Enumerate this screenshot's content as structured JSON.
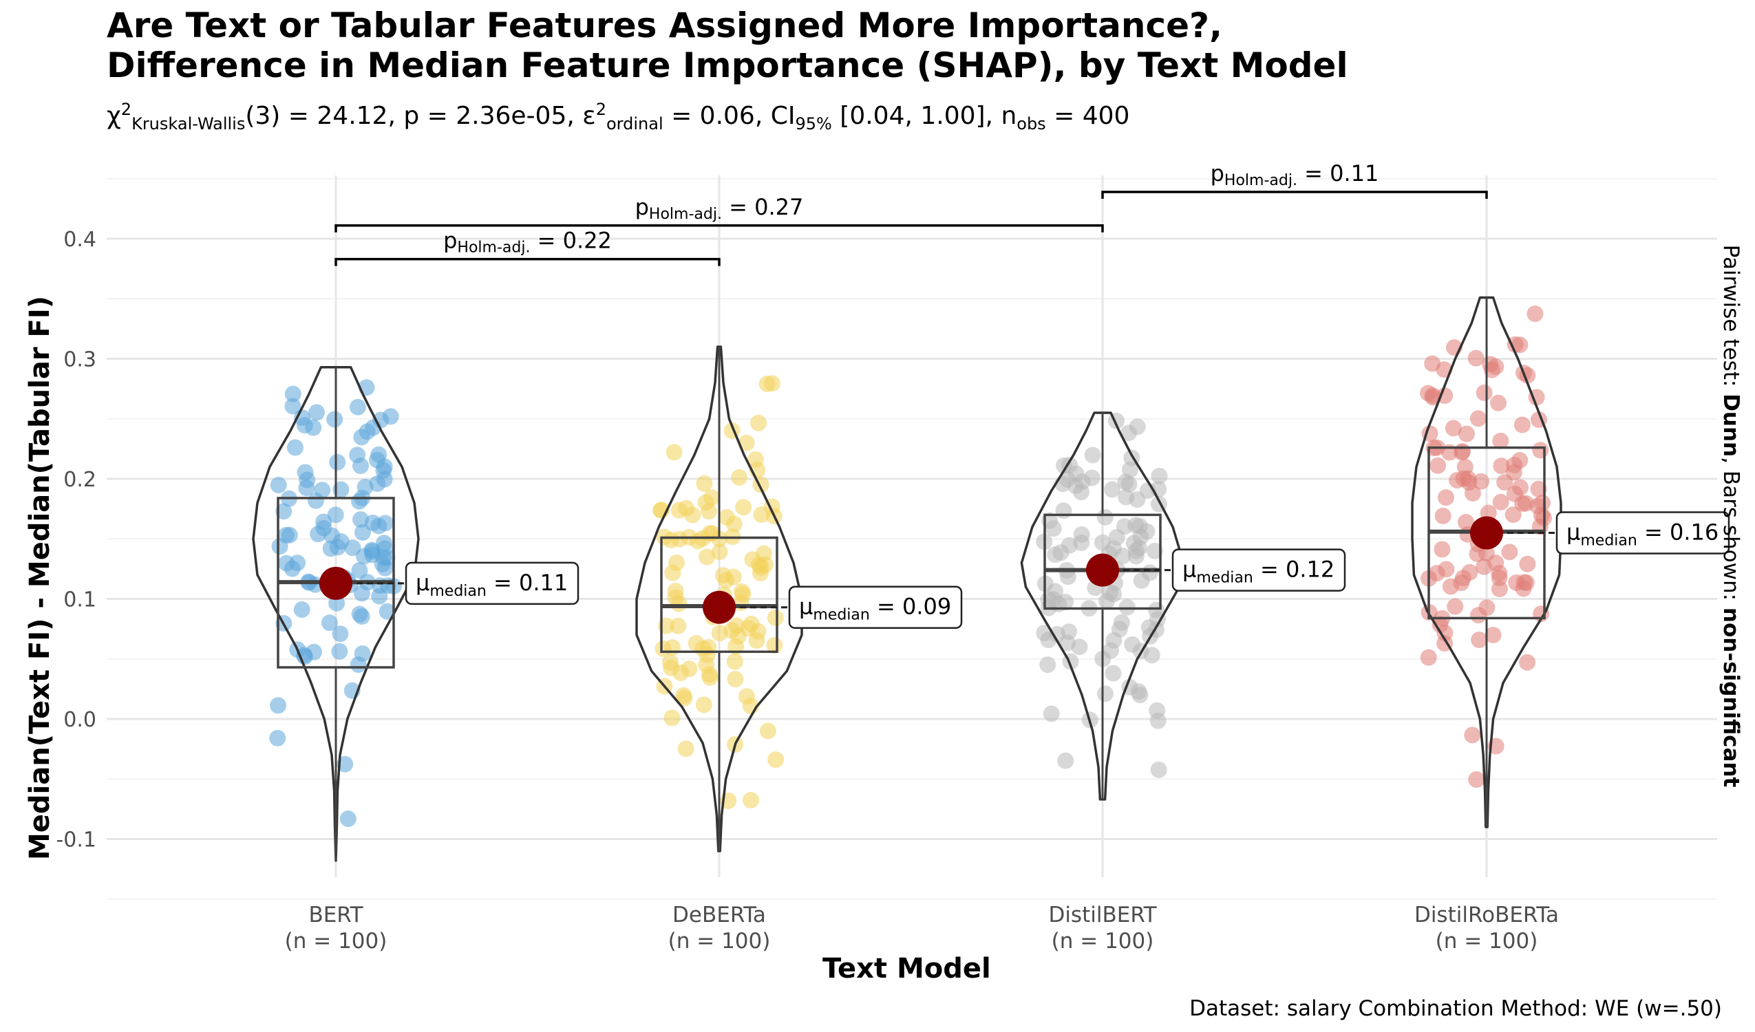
{
  "title_line1": "Are Text or Tabular Features Assigned More Importance?,",
  "title_line2": "Difference in Median Feature Importance (SHAP), by Text Model",
  "subtitle": {
    "chi_symbol": "χ",
    "chi_sup": "2",
    "chi_sub": "Kruskal-Wallis",
    "stat_text": "(3) = 24.12, p = 2.36e-05, ",
    "eps_symbol": "ε",
    "eps_sup": "2",
    "eps_sub": "ordinal",
    "eps_text": " = 0.06, CI",
    "ci_sub": "95%",
    "ci_text": " [0.04, 1.00], n",
    "n_sub": "obs",
    "n_text": " = 400"
  },
  "xlabel": "Text Model",
  "ylabel": "Median(Text FI) - Median(Tabular FI)",
  "right_label": {
    "pre": "Pairwise test: ",
    "test": "Dunn",
    "mid": ", Bars shown: ",
    "bars": "non-significant"
  },
  "caption": "Dataset:  salary Combination Method:  WE (w=.50)",
  "chart_data": {
    "type": "violin",
    "ylim": [
      -0.12,
      0.45
    ],
    "yticks": [
      "0.4",
      "0.3",
      "0.2",
      "0.1",
      "0.0",
      "-0.1"
    ],
    "ytick_values": [
      0.4,
      0.3,
      0.2,
      0.1,
      0.0,
      -0.1
    ],
    "grid": true,
    "groups": [
      {
        "name": "BERT",
        "n_label": "(n = 100)",
        "color": "#5DA5DA",
        "q1": 0.043,
        "median": 0.114,
        "q3": 0.184,
        "min": -0.118,
        "max": 0.293,
        "mean_point": 0.113,
        "median_label_pre": "μ",
        "median_label_sub": "median",
        "median_label_val": " = 0.11",
        "violin_width": [
          [
            -0.118,
            0.0
          ],
          [
            -0.09,
            0.012
          ],
          [
            -0.06,
            0.02
          ],
          [
            -0.03,
            0.05
          ],
          [
            0.0,
            0.14
          ],
          [
            0.03,
            0.3
          ],
          [
            0.06,
            0.48
          ],
          [
            0.09,
            0.72
          ],
          [
            0.12,
            0.95
          ],
          [
            0.15,
            1.0
          ],
          [
            0.18,
            0.95
          ],
          [
            0.21,
            0.8
          ],
          [
            0.24,
            0.55
          ],
          [
            0.27,
            0.33
          ],
          [
            0.293,
            0.18
          ]
        ]
      },
      {
        "name": "DeBERTa",
        "n_label": "(n = 100)",
        "color": "#F3D259",
        "q1": 0.056,
        "median": 0.094,
        "q3": 0.151,
        "min": -0.11,
        "max": 0.31,
        "mean_point": 0.093,
        "median_label_pre": "μ",
        "median_label_sub": "median",
        "median_label_val": " = 0.09",
        "violin_width": [
          [
            -0.11,
            0.01
          ],
          [
            -0.08,
            0.03
          ],
          [
            -0.05,
            0.08
          ],
          [
            -0.02,
            0.2
          ],
          [
            0.01,
            0.45
          ],
          [
            0.04,
            0.82
          ],
          [
            0.07,
            1.0
          ],
          [
            0.1,
            1.0
          ],
          [
            0.13,
            0.9
          ],
          [
            0.16,
            0.73
          ],
          [
            0.19,
            0.52
          ],
          [
            0.22,
            0.3
          ],
          [
            0.25,
            0.12
          ],
          [
            0.28,
            0.05
          ],
          [
            0.31,
            0.02
          ]
        ]
      },
      {
        "name": "DistilBERT",
        "n_label": "(n = 100)",
        "color": "#B8B8B8",
        "q1": 0.092,
        "median": 0.124,
        "q3": 0.17,
        "min": -0.067,
        "max": 0.255,
        "mean_point": 0.124,
        "median_label_pre": "μ",
        "median_label_sub": "median",
        "median_label_val": " = 0.12",
        "violin_width": [
          [
            -0.067,
            0.03
          ],
          [
            -0.04,
            0.05
          ],
          [
            -0.01,
            0.12
          ],
          [
            0.02,
            0.25
          ],
          [
            0.05,
            0.42
          ],
          [
            0.08,
            0.68
          ],
          [
            0.11,
            0.93
          ],
          [
            0.13,
            0.98
          ],
          [
            0.16,
            0.85
          ],
          [
            0.19,
            0.62
          ],
          [
            0.22,
            0.35
          ],
          [
            0.24,
            0.2
          ],
          [
            0.255,
            0.1
          ]
        ]
      },
      {
        "name": "DistilRoBERTa",
        "n_label": "(n = 100)",
        "color": "#E07E76",
        "q1": 0.084,
        "median": 0.156,
        "q3": 0.226,
        "min": -0.09,
        "max": 0.351,
        "mean_point": 0.155,
        "median_label_pre": "μ",
        "median_label_sub": "median",
        "median_label_val": " = 0.16",
        "violin_width": [
          [
            -0.09,
            0.01
          ],
          [
            -0.06,
            0.02
          ],
          [
            -0.03,
            0.04
          ],
          [
            0.0,
            0.08
          ],
          [
            0.03,
            0.2
          ],
          [
            0.06,
            0.45
          ],
          [
            0.09,
            0.72
          ],
          [
            0.12,
            0.88
          ],
          [
            0.15,
            0.9
          ],
          [
            0.18,
            0.9
          ],
          [
            0.21,
            0.85
          ],
          [
            0.24,
            0.72
          ],
          [
            0.27,
            0.55
          ],
          [
            0.3,
            0.38
          ],
          [
            0.33,
            0.18
          ],
          [
            0.351,
            0.08
          ]
        ]
      }
    ],
    "brackets": [
      {
        "from": 0,
        "to": 1,
        "y": 0.383,
        "label_pre": "p",
        "label_sub": "Holm-adj.",
        "label_val": " = 0.22"
      },
      {
        "from": 0,
        "to": 2,
        "y": 0.411,
        "label_pre": "p",
        "label_sub": "Holm-adj.",
        "label_val": " = 0.27"
      },
      {
        "from": 2,
        "to": 3,
        "y": 0.439,
        "label_pre": "p",
        "label_sub": "Holm-adj.",
        "label_val": " = 0.11"
      }
    ],
    "mean_color": "#8B0000"
  }
}
